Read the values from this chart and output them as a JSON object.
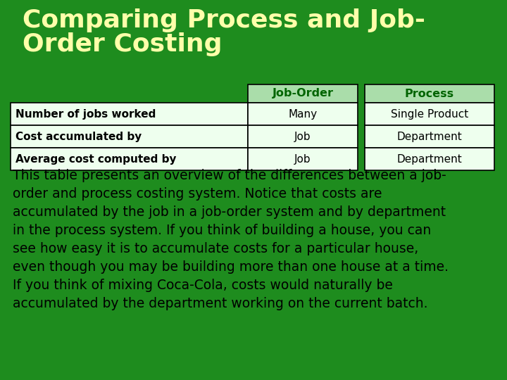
{
  "background_color": "#1E8C1E",
  "title_line1": "Comparing Process and Job-",
  "title_line2": "Order Costing",
  "title_color": "#FFFFAA",
  "title_fontsize": 26,
  "title_fontweight": "bold",
  "table_headers": [
    "",
    "Job-Order",
    "Process"
  ],
  "table_rows": [
    [
      "Number of jobs worked",
      "Many",
      "Single Product"
    ],
    [
      "Cost accumulated by",
      "Job",
      "Department"
    ],
    [
      "Average cost computed by",
      "Job",
      "Department"
    ]
  ],
  "header_bg_color": "#AADDAA",
  "header_text_color": "#006400",
  "header_fontweight": "bold",
  "cell_bg_color": "#EEFFEE",
  "cell_text_color": "#000000",
  "col0_fontweight": "bold",
  "body_text_lines": [
    "This table presents an overview of the differences between a job-",
    "order and process costing system. Notice that costs are",
    "accumulated by the job in a job-order system and by department",
    "in the process system. If you think of building a house, you can",
    "see how easy it is to accumulate costs for a particular house,",
    "even though you may be building more than one house at a time.",
    "If you think of mixing Coca-Cola, costs would naturally be",
    "accumulated by the department working on the current batch."
  ],
  "body_text_color": "#000000",
  "body_fontsize": 13.5
}
